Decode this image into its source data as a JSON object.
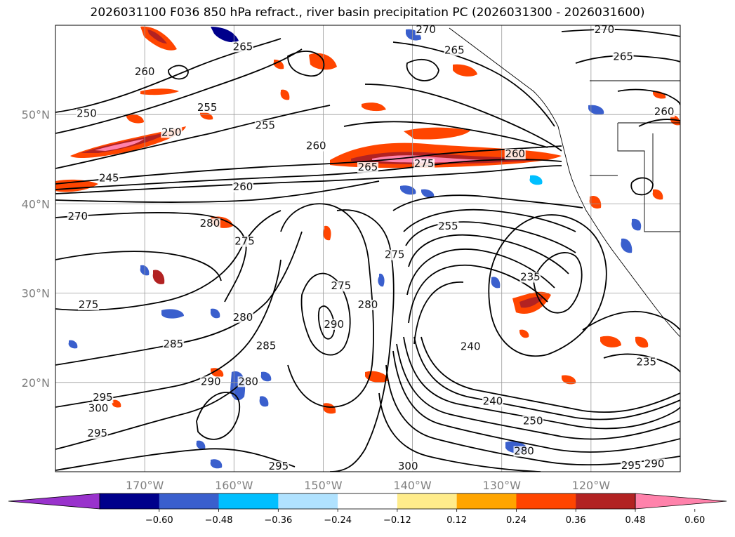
{
  "title": "2026031100 F036 850 hPa refract., river basin precipitation PC (2026031300 - 2026031600)",
  "map": {
    "extent": {
      "lon_min": -180,
      "lon_max": -110,
      "lat_min": 10,
      "lat_max": 60
    },
    "gridlines": true,
    "lon_ticks": [
      {
        "lon": -170,
        "label": "170°W"
      },
      {
        "lon": -160,
        "label": "160°W"
      },
      {
        "lon": -150,
        "label": "150°W"
      },
      {
        "lon": -140,
        "label": "140°W"
      },
      {
        "lon": -130,
        "label": "130°W"
      },
      {
        "lon": -120,
        "label": "120°W"
      }
    ],
    "lat_ticks": [
      {
        "lat": 50,
        "label": "50°N"
      },
      {
        "lat": 40,
        "label": "40°N"
      },
      {
        "lat": 30,
        "label": "30°N"
      },
      {
        "lat": 20,
        "label": "20°N"
      }
    ],
    "contour_labels": [
      {
        "text": "250",
        "lon": -176.5,
        "lat": 49.8
      },
      {
        "text": "255",
        "lon": -163,
        "lat": 50.5
      },
      {
        "text": "250",
        "lon": -167,
        "lat": 47.7
      },
      {
        "text": "245",
        "lon": -174,
        "lat": 42.6
      },
      {
        "text": "260",
        "lon": -170,
        "lat": 54.5
      },
      {
        "text": "265",
        "lon": -159,
        "lat": 57.3
      },
      {
        "text": "255",
        "lon": -156.5,
        "lat": 48.5
      },
      {
        "text": "260",
        "lon": -150.8,
        "lat": 46.2
      },
      {
        "text": "265",
        "lon": -145,
        "lat": 43.8
      },
      {
        "text": "260",
        "lon": -159,
        "lat": 41.6
      },
      {
        "text": "270",
        "lon": -177.5,
        "lat": 38.3
      },
      {
        "text": "280",
        "lon": -162.7,
        "lat": 37.5
      },
      {
        "text": "275",
        "lon": -158.8,
        "lat": 35.5
      },
      {
        "text": "275",
        "lon": -148,
        "lat": 30.5
      },
      {
        "text": "275",
        "lon": -142,
        "lat": 34
      },
      {
        "text": "280",
        "lon": -145,
        "lat": 28.4
      },
      {
        "text": "275",
        "lon": -176.3,
        "lat": 28.4
      },
      {
        "text": "280",
        "lon": -159,
        "lat": 27
      },
      {
        "text": "290",
        "lon": -148.8,
        "lat": 26.2
      },
      {
        "text": "285",
        "lon": -166.8,
        "lat": 24
      },
      {
        "text": "285",
        "lon": -156.4,
        "lat": 23.8
      },
      {
        "text": "290",
        "lon": -162.6,
        "lat": 19.8
      },
      {
        "text": "280",
        "lon": -158.4,
        "lat": 19.8
      },
      {
        "text": "295",
        "lon": -174.7,
        "lat": 18
      },
      {
        "text": "300",
        "lon": -175.2,
        "lat": 16.8
      },
      {
        "text": "295",
        "lon": -175.3,
        "lat": 14
      },
      {
        "text": "295",
        "lon": -155,
        "lat": 10.3
      },
      {
        "text": "300",
        "lon": -140.5,
        "lat": 10.3
      },
      {
        "text": "255",
        "lon": -136,
        "lat": 37.2
      },
      {
        "text": "240",
        "lon": -133.5,
        "lat": 23.7
      },
      {
        "text": "240",
        "lon": -131,
        "lat": 17.6
      },
      {
        "text": "250",
        "lon": -126.5,
        "lat": 15.4
      },
      {
        "text": "280",
        "lon": -127.5,
        "lat": 12
      },
      {
        "text": "235",
        "lon": -126.8,
        "lat": 31.5
      },
      {
        "text": "235",
        "lon": -113.8,
        "lat": 22
      },
      {
        "text": "260",
        "lon": -128.5,
        "lat": 45.3
      },
      {
        "text": "275",
        "lon": -138.7,
        "lat": 44.2
      },
      {
        "text": "270",
        "lon": -118.5,
        "lat": 59.2
      },
      {
        "text": "265",
        "lon": -116.4,
        "lat": 56.2
      },
      {
        "text": "270",
        "lon": -138.5,
        "lat": 59.2
      },
      {
        "text": "265",
        "lon": -135.3,
        "lat": 56.9
      },
      {
        "text": "260",
        "lon": -111.8,
        "lat": 50
      },
      {
        "text": "295",
        "lon": -115.5,
        "lat": 10.4
      },
      {
        "text": "290",
        "lon": -112.9,
        "lat": 10.6
      }
    ]
  },
  "colorbar": {
    "colors": [
      "#9932cc",
      "#00008b",
      "#3a5fcd",
      "#00bfff",
      "#b0e2ff",
      "#ffffff",
      "#ffec8b",
      "#ffa500",
      "#ff4500",
      "#b22222",
      "#ff82ab"
    ],
    "ticks": [
      "−0.60",
      "−0.48",
      "−0.36",
      "−0.24",
      "−0.12",
      "0.12",
      "0.24",
      "0.36",
      "0.48",
      "0.60"
    ]
  }
}
